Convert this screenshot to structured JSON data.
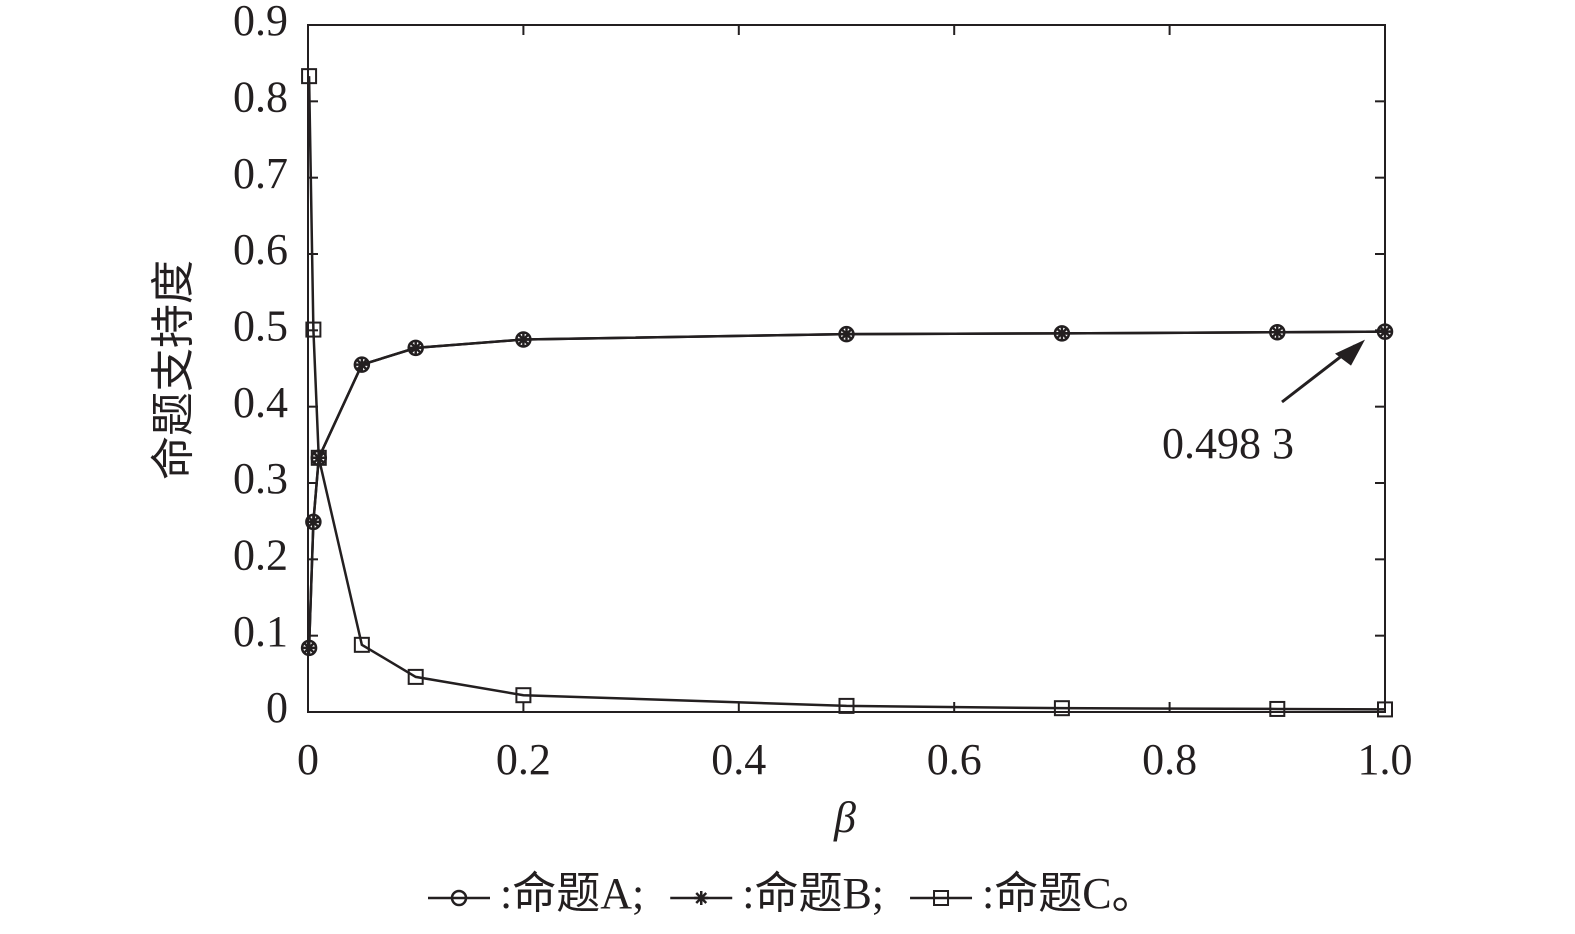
{
  "chart_data": {
    "type": "line",
    "x_label": "β",
    "y_label": "命题支持度",
    "x": [
      0.001,
      0.005,
      0.01,
      0.05,
      0.1,
      0.2,
      0.5,
      0.7,
      0.9,
      1.0
    ],
    "series": [
      {
        "name": ":命题A;",
        "color": "#231f20",
        "marker": "circle",
        "values": [
          0.084,
          0.249,
          0.333,
          0.455,
          0.477,
          0.488,
          0.495,
          0.496,
          0.4975,
          0.4983
        ]
      },
      {
        "name": ":命题B;",
        "color": "#231f20",
        "marker": "star",
        "values": [
          0.084,
          0.249,
          0.333,
          0.455,
          0.477,
          0.488,
          0.495,
          0.496,
          0.4975,
          0.4983
        ]
      },
      {
        "name": ":命题C。",
        "color": "#231f20",
        "marker": "square",
        "values": [
          0.833,
          0.501,
          0.333,
          0.088,
          0.046,
          0.022,
          0.008,
          0.005,
          0.004,
          0.0034
        ]
      }
    ],
    "xlim": [
      0,
      1
    ],
    "ylim": [
      0,
      0.9
    ],
    "xticks": [
      0,
      0.2,
      0.4,
      0.6,
      0.8,
      {
        "value": 1,
        "label": "1.0"
      }
    ],
    "yticks": [
      0,
      0.1,
      0.2,
      0.3,
      0.4,
      0.5,
      0.6,
      0.7,
      0.8,
      0.9
    ],
    "grid": false,
    "annotation": {
      "text": "0.498 3",
      "x": 1,
      "y": 0.4983
    }
  }
}
